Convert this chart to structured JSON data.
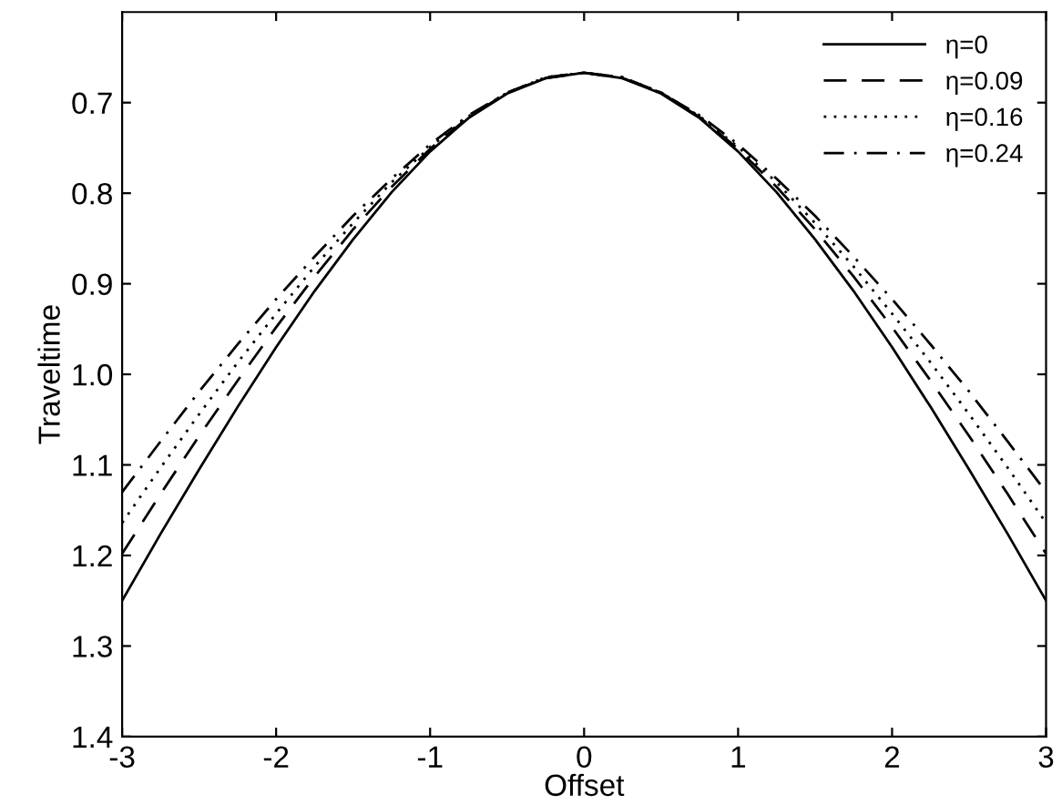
{
  "chart_data": {
    "type": "line",
    "xlabel": "Offset",
    "ylabel": "Traveltime",
    "x": [
      -3,
      -2.75,
      -2.5,
      -2.25,
      -2,
      -1.75,
      -1.5,
      -1.25,
      -1,
      -0.75,
      -0.5,
      -0.25,
      0,
      0.25,
      0.5,
      0.75,
      1,
      1.25,
      1.5,
      1.75,
      2,
      2.25,
      2.5,
      2.75,
      3
    ],
    "series": [
      {
        "name": "η=0",
        "color": "#000000",
        "line_style": "solid",
        "values": [
          1.25,
          1.176,
          1.105,
          1.036,
          0.97,
          0.908,
          0.851,
          0.799,
          0.754,
          0.717,
          0.69,
          0.673,
          0.667,
          0.673,
          0.69,
          0.717,
          0.754,
          0.799,
          0.851,
          0.908,
          0.97,
          1.036,
          1.105,
          1.176,
          1.25
        ]
      },
      {
        "name": "η=0.09",
        "color": "#000000",
        "line_style": "dashed",
        "values": [
          1.198,
          1.132,
          1.068,
          1.007,
          0.948,
          0.892,
          0.84,
          0.793,
          0.751,
          0.716,
          0.689,
          0.673,
          0.667,
          0.673,
          0.689,
          0.716,
          0.751,
          0.793,
          0.84,
          0.892,
          0.948,
          1.007,
          1.068,
          1.132,
          1.198
        ]
      },
      {
        "name": "η=0.16",
        "color": "#000000",
        "line_style": "dotted",
        "values": [
          1.164,
          1.103,
          1.044,
          0.987,
          0.933,
          0.881,
          0.833,
          0.788,
          0.749,
          0.715,
          0.689,
          0.672,
          0.667,
          0.672,
          0.689,
          0.715,
          0.749,
          0.788,
          0.833,
          0.881,
          0.933,
          0.987,
          1.044,
          1.103,
          1.164
        ]
      },
      {
        "name": "η=0.24",
        "color": "#000000",
        "line_style": "dashdot",
        "values": [
          1.13,
          1.074,
          1.019,
          0.967,
          0.917,
          0.87,
          0.825,
          0.784,
          0.746,
          0.714,
          0.689,
          0.672,
          0.667,
          0.672,
          0.689,
          0.714,
          0.746,
          0.784,
          0.825,
          0.87,
          0.917,
          0.967,
          1.019,
          1.074,
          1.13
        ]
      }
    ],
    "xlim": [
      -3,
      3
    ],
    "xticks": [
      -3,
      -2,
      -1,
      0,
      1,
      2,
      3
    ],
    "ylim": [
      1.4,
      0.6
    ],
    "yticks": [
      0.7,
      0.8,
      0.9,
      {
        "value": 1,
        "label": "1.0"
      },
      1.1,
      1.2,
      1.3,
      1.4
    ],
    "grid": false,
    "legend": "top right"
  }
}
